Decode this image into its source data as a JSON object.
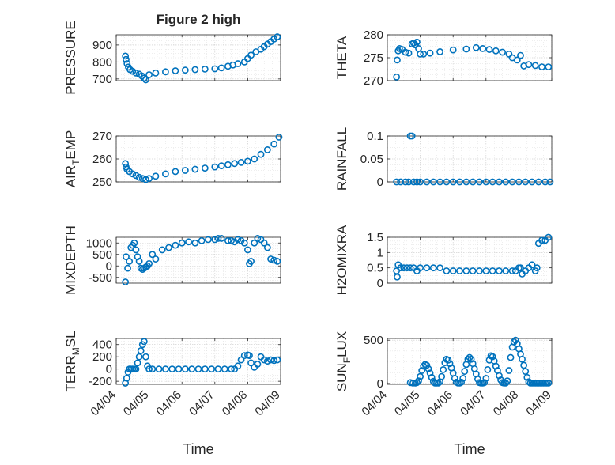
{
  "figure": {
    "title": "Figure 2 high",
    "marker_color": "#0072BD",
    "xlabel": "Time",
    "time_ticks": [
      "04/04",
      "04/05",
      "04/06",
      "04/07",
      "04/08",
      "04/09"
    ]
  },
  "chart_data": [
    {
      "id": "pressure",
      "type": "scatter",
      "ylabel": "PRESSURE",
      "ylim": [
        690,
        960
      ],
      "yticks": [
        700,
        800,
        900
      ],
      "yticklabels": [
        "700",
        "800",
        "900"
      ],
      "xlim": [
        0,
        5
      ],
      "x": [
        0.28,
        0.3,
        0.33,
        0.37,
        0.42,
        0.5,
        0.6,
        0.7,
        0.78,
        0.85,
        0.9,
        1.0,
        1.2,
        1.5,
        1.8,
        2.1,
        2.4,
        2.7,
        3.0,
        3.2,
        3.4,
        3.55,
        3.7,
        3.9,
        4.0,
        4.1,
        4.25,
        4.4,
        4.5,
        4.6,
        4.7,
        4.8,
        4.9
      ],
      "y": [
        835,
        815,
        790,
        770,
        755,
        745,
        735,
        728,
        718,
        705,
        695,
        725,
        735,
        742,
        748,
        752,
        755,
        758,
        760,
        765,
        775,
        782,
        790,
        800,
        820,
        840,
        860,
        875,
        890,
        905,
        920,
        935,
        948
      ]
    },
    {
      "id": "theta",
      "type": "scatter",
      "ylabel": "THETA",
      "ylim": [
        270,
        280
      ],
      "yticks": [
        270,
        275,
        280
      ],
      "yticklabels": [
        "270",
        "275",
        "280"
      ],
      "xlim": [
        0,
        5
      ],
      "x": [
        0.28,
        0.3,
        0.33,
        0.37,
        0.45,
        0.55,
        0.65,
        0.75,
        0.8,
        0.85,
        0.9,
        0.95,
        1.0,
        1.1,
        1.3,
        1.6,
        2.0,
        2.4,
        2.7,
        2.9,
        3.1,
        3.3,
        3.5,
        3.7,
        3.8,
        3.95,
        4.05,
        4.15,
        4.3,
        4.5,
        4.7,
        4.9
      ],
      "y": [
        270.8,
        274.5,
        276.5,
        277.0,
        276.8,
        276.2,
        276.0,
        278.0,
        278.2,
        277.8,
        278.4,
        277.0,
        275.8,
        275.8,
        276.0,
        276.3,
        276.7,
        276.9,
        277.2,
        277.0,
        276.8,
        276.5,
        276.2,
        275.8,
        275.0,
        274.5,
        275.5,
        273.2,
        273.5,
        273.3,
        273.0,
        273.0
      ]
    },
    {
      "id": "air_temp",
      "type": "scatter",
      "ylabel": "AIR",
      "ylabel_sub": "T",
      "ylabel_tail": "EMP",
      "ylim": [
        250,
        270
      ],
      "yticks": [
        250,
        260,
        270
      ],
      "yticklabels": [
        "250",
        "260",
        "270"
      ],
      "xlim": [
        0,
        5
      ],
      "x": [
        0.28,
        0.3,
        0.33,
        0.4,
        0.5,
        0.6,
        0.7,
        0.8,
        0.9,
        1.0,
        1.2,
        1.5,
        1.8,
        2.1,
        2.4,
        2.7,
        3.0,
        3.2,
        3.4,
        3.6,
        3.8,
        4.0,
        4.2,
        4.4,
        4.6,
        4.8,
        4.95
      ],
      "y": [
        258,
        256.5,
        255.5,
        254.5,
        253.5,
        252.8,
        252.0,
        251.5,
        251.0,
        251.5,
        252.5,
        253.5,
        254.5,
        255.0,
        255.5,
        256.0,
        256.5,
        257.0,
        257.5,
        258.0,
        258.5,
        259.0,
        260.0,
        262.0,
        264.0,
        266.5,
        269.5
      ]
    },
    {
      "id": "rainfall",
      "type": "scatter",
      "ylabel": "RAINFALL",
      "ylim": [
        0,
        0.1
      ],
      "yticks": [
        0,
        0.05,
        0.1
      ],
      "yticklabels": [
        "0",
        "0.05",
        "0.1"
      ],
      "xlim": [
        0,
        5
      ],
      "x": [
        0.28,
        0.4,
        0.55,
        0.65,
        0.7,
        0.75,
        0.8,
        0.9,
        1.0,
        1.2,
        1.4,
        1.6,
        1.8,
        2.0,
        2.2,
        2.4,
        2.6,
        2.8,
        3.0,
        3.2,
        3.4,
        3.6,
        3.8,
        4.0,
        4.2,
        4.4,
        4.6,
        4.8,
        4.95
      ],
      "y": [
        0,
        0,
        0,
        0,
        0.1,
        0.1,
        0,
        0,
        0,
        0,
        0,
        0,
        0,
        0,
        0,
        0,
        0,
        0,
        0,
        0,
        0,
        0,
        0,
        0,
        0,
        0,
        0,
        0,
        0
      ]
    },
    {
      "id": "mixdepth",
      "type": "scatter",
      "ylabel": "MIXDEPTH",
      "ylim": [
        -750,
        1250
      ],
      "yticks": [
        -500,
        0,
        500,
        1000
      ],
      "yticklabels": [
        "-500",
        "0",
        "500",
        "1000"
      ],
      "xlim": [
        0,
        5
      ],
      "x": [
        0.28,
        0.3,
        0.35,
        0.4,
        0.45,
        0.5,
        0.55,
        0.6,
        0.65,
        0.7,
        0.75,
        0.8,
        0.85,
        0.9,
        0.95,
        1.0,
        1.1,
        1.2,
        1.4,
        1.6,
        1.8,
        2.0,
        2.2,
        2.4,
        2.6,
        2.8,
        3.0,
        3.1,
        3.2,
        3.4,
        3.5,
        3.6,
        3.7,
        3.8,
        3.9,
        4.0,
        4.05,
        4.1,
        4.2,
        4.3,
        4.4,
        4.5,
        4.6,
        4.7,
        4.8,
        4.9
      ],
      "y": [
        -700,
        400,
        -100,
        200,
        800,
        900,
        1000,
        700,
        400,
        200,
        -100,
        -150,
        -100,
        -50,
        0,
        100,
        500,
        300,
        700,
        800,
        900,
        1000,
        1050,
        1000,
        1100,
        1150,
        1150,
        1200,
        1200,
        1100,
        1100,
        1050,
        1150,
        1100,
        1000,
        700,
        100,
        200,
        1000,
        1200,
        1150,
        1000,
        800,
        300,
        250,
        200
      ]
    },
    {
      "id": "h2omixra",
      "type": "scatter",
      "ylabel": "H2OMIXRA",
      "ylim": [
        0,
        1.5
      ],
      "yticks": [
        0,
        0.5,
        1,
        1.5
      ],
      "yticklabels": [
        "0",
        "0.5",
        "1",
        "1.5"
      ],
      "xlim": [
        0,
        5
      ],
      "x": [
        0.28,
        0.3,
        0.33,
        0.4,
        0.5,
        0.6,
        0.7,
        0.8,
        0.9,
        1.0,
        1.2,
        1.4,
        1.6,
        1.8,
        2.0,
        2.2,
        2.4,
        2.6,
        2.8,
        3.0,
        3.2,
        3.4,
        3.6,
        3.8,
        3.9,
        4.0,
        4.05,
        4.1,
        4.2,
        4.3,
        4.4,
        4.5,
        4.55,
        4.6,
        4.7,
        4.8,
        4.9
      ],
      "y": [
        0.4,
        0.2,
        0.6,
        0.5,
        0.5,
        0.5,
        0.5,
        0.5,
        0.4,
        0.5,
        0.5,
        0.5,
        0.5,
        0.4,
        0.4,
        0.4,
        0.4,
        0.4,
        0.4,
        0.4,
        0.4,
        0.4,
        0.4,
        0.4,
        0.4,
        0.5,
        0.5,
        0.3,
        0.4,
        0.5,
        0.6,
        0.4,
        0.5,
        1.3,
        1.4,
        1.4,
        1.5
      ]
    },
    {
      "id": "terr_msl",
      "type": "scatter",
      "ylabel": "TERR",
      "ylabel_sub": "M",
      "ylabel_tail": "SL",
      "ylim": [
        -250,
        500
      ],
      "yticks": [
        -200,
        0,
        200,
        400
      ],
      "yticklabels": [
        "-200",
        "0",
        "200",
        "400"
      ],
      "xlim": [
        0,
        5
      ],
      "x": [
        0.28,
        0.32,
        0.36,
        0.4,
        0.45,
        0.5,
        0.55,
        0.6,
        0.65,
        0.7,
        0.75,
        0.8,
        0.85,
        0.9,
        0.95,
        1.0,
        1.1,
        1.3,
        1.5,
        1.7,
        1.9,
        2.1,
        2.3,
        2.5,
        2.7,
        2.9,
        3.1,
        3.3,
        3.5,
        3.6,
        3.7,
        3.8,
        3.9,
        4.0,
        4.05,
        4.1,
        4.2,
        4.3,
        4.4,
        4.5,
        4.6,
        4.7,
        4.8,
        4.9
      ],
      "y": [
        -230,
        -150,
        -50,
        0,
        0,
        0,
        0,
        0,
        100,
        200,
        300,
        400,
        450,
        200,
        50,
        0,
        0,
        0,
        0,
        0,
        0,
        0,
        0,
        0,
        0,
        0,
        0,
        0,
        0,
        0,
        50,
        150,
        220,
        230,
        220,
        100,
        30,
        80,
        200,
        150,
        130,
        150,
        140,
        150
      ]
    },
    {
      "id": "sunflux",
      "type": "scatter",
      "ylabel": "SUN",
      "ylabel_sub": "F",
      "ylabel_tail": "LUX",
      "ylim": [
        -10,
        520
      ],
      "yticks": [
        0,
        500
      ],
      "yticklabels": [
        "0",
        "500"
      ],
      "xlim": [
        0,
        5
      ],
      "x": [
        0.7,
        0.78,
        0.85,
        0.9,
        0.95,
        1.0,
        1.05,
        1.1,
        1.15,
        1.2,
        1.25,
        1.3,
        1.35,
        1.4,
        1.45,
        1.5,
        1.55,
        1.6,
        1.65,
        1.7,
        1.75,
        1.8,
        1.85,
        1.9,
        1.95,
        2.0,
        2.05,
        2.1,
        2.15,
        2.2,
        2.25,
        2.3,
        2.35,
        2.4,
        2.45,
        2.5,
        2.55,
        2.6,
        2.65,
        2.7,
        2.75,
        2.8,
        2.85,
        2.9,
        2.95,
        3.0,
        3.05,
        3.1,
        3.15,
        3.2,
        3.25,
        3.3,
        3.35,
        3.4,
        3.45,
        3.5,
        3.55,
        3.6,
        3.65,
        3.7,
        3.75,
        3.8,
        3.85,
        3.9,
        3.95,
        4.0,
        4.05,
        4.1,
        4.15,
        4.2,
        4.25,
        4.3,
        4.35,
        4.4,
        4.45,
        4.5,
        4.55,
        4.6,
        4.65,
        4.7,
        4.75,
        4.8,
        4.85,
        4.9
      ],
      "y": [
        10,
        5,
        5,
        10,
        30,
        80,
        150,
        200,
        220,
        210,
        170,
        120,
        70,
        25,
        5,
        5,
        5,
        20,
        80,
        160,
        240,
        280,
        270,
        230,
        180,
        120,
        60,
        15,
        5,
        5,
        15,
        60,
        140,
        220,
        280,
        300,
        280,
        230,
        170,
        110,
        50,
        10,
        5,
        5,
        10,
        60,
        160,
        270,
        320,
        310,
        260,
        200,
        150,
        90,
        40,
        10,
        5,
        5,
        30,
        150,
        300,
        420,
        480,
        500,
        460,
        400,
        340,
        280,
        210,
        140,
        70,
        20,
        5,
        5,
        5,
        5,
        5,
        5,
        5,
        5,
        5,
        5,
        5,
        5
      ]
    }
  ]
}
